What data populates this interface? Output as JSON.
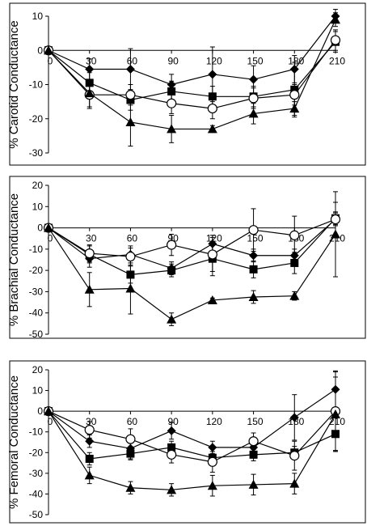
{
  "chart_data": [
    {
      "type": "line",
      "ylabel": "% Carotid Conductance",
      "x": [
        0,
        30,
        60,
        90,
        120,
        150,
        180,
        210
      ],
      "xticks": [
        "0",
        "30",
        "60",
        "90",
        "120",
        "150",
        "180",
        "210"
      ],
      "yticks": [
        "10",
        "0",
        "-10",
        "-20",
        "-30"
      ],
      "ylim": [
        -30,
        12
      ],
      "grid": false,
      "legend": "none",
      "series": [
        {
          "marker": "diamond",
          "values": [
            0,
            -5.5,
            -5.5,
            -10,
            -7,
            -8.5,
            -5.5,
            10
          ],
          "err": [
            0,
            3,
            6,
            3,
            8,
            4,
            4,
            2
          ]
        },
        {
          "marker": "square",
          "values": [
            0,
            -9.5,
            -14.5,
            -12,
            -13.5,
            -13.5,
            -11.5,
            2.5
          ],
          "err": [
            0,
            3,
            3,
            3,
            3,
            3,
            8,
            3
          ]
        },
        {
          "marker": "circle",
          "values": [
            0,
            -13,
            -13,
            -15.5,
            -17,
            -14,
            -13,
            3
          ],
          "err": [
            0,
            4,
            3,
            3,
            3,
            3,
            3,
            3
          ]
        },
        {
          "marker": "triangle",
          "values": [
            0,
            -12.5,
            -21,
            -23,
            -23,
            -18.5,
            -17,
            9
          ],
          "err": [
            0,
            4,
            7,
            4,
            1,
            3,
            2,
            2
          ]
        }
      ]
    },
    {
      "type": "line",
      "ylabel": "% Brachial Conductance",
      "x": [
        0,
        30,
        60,
        90,
        120,
        150,
        180,
        210
      ],
      "xticks": [
        "0",
        "30",
        "60",
        "90",
        "120",
        "150",
        "180",
        "210"
      ],
      "yticks": [
        "20",
        "10",
        "0",
        "-10",
        "-20",
        "-30",
        "-40",
        "-50"
      ],
      "ylim": [
        -50,
        20
      ],
      "grid": false,
      "legend": "none",
      "series": [
        {
          "marker": "diamond",
          "values": [
            0,
            -14.5,
            -12.5,
            -19,
            -7.5,
            -13,
            -13,
            4
          ],
          "err": [
            0,
            4,
            4,
            3,
            4,
            3,
            3,
            3
          ]
        },
        {
          "marker": "square",
          "values": [
            0,
            -12.5,
            -22,
            -20,
            -14.5,
            -19.5,
            -16.5,
            4.5
          ],
          "err": [
            0,
            4,
            4,
            3,
            8,
            4,
            5,
            3
          ]
        },
        {
          "marker": "circle",
          "values": [
            0,
            -12,
            -13.5,
            -8,
            -12.5,
            -1,
            -3.5,
            4
          ],
          "err": [
            0,
            4,
            4,
            5,
            8,
            10,
            9,
            8
          ]
        },
        {
          "marker": "triangle",
          "values": [
            0,
            -29,
            -28.5,
            -43,
            -34,
            -32.5,
            -32,
            -3
          ],
          "err": [
            0,
            8,
            12,
            3,
            1,
            3,
            2,
            20
          ]
        }
      ]
    },
    {
      "type": "line",
      "ylabel": "% Femoral Conductance",
      "x": [
        0,
        30,
        60,
        90,
        120,
        150,
        180,
        210
      ],
      "xticks": [
        "0",
        "30",
        "60",
        "90",
        "120",
        "150",
        "180",
        "210"
      ],
      "yticks": [
        "20",
        "10",
        "0",
        "-10",
        "-20",
        "-30",
        "-40",
        "-50"
      ],
      "ylim": [
        -50,
        20
      ],
      "grid": false,
      "legend": "none",
      "series": [
        {
          "marker": "diamond",
          "values": [
            0,
            -14.5,
            -18,
            -9.5,
            -17.5,
            -17.5,
            -3,
            10.5
          ],
          "err": [
            0,
            3,
            5,
            4,
            3,
            3,
            11,
            9
          ]
        },
        {
          "marker": "square",
          "values": [
            0,
            -23,
            -20.5,
            -17.5,
            -22.5,
            -21,
            -20,
            -11
          ],
          "err": [
            0,
            3,
            3,
            3,
            3,
            3,
            3,
            8
          ]
        },
        {
          "marker": "circle",
          "values": [
            0,
            -9,
            -13.5,
            -21,
            -24.5,
            -14.5,
            -21.5,
            0
          ],
          "err": [
            0,
            4,
            5,
            4,
            5,
            4,
            7,
            19
          ]
        },
        {
          "marker": "triangle",
          "values": [
            0,
            -31,
            -37,
            -38,
            -36,
            -35.5,
            -35,
            -1.5
          ],
          "err": [
            0,
            4,
            3,
            3,
            5,
            5,
            5,
            18
          ]
        }
      ]
    }
  ]
}
